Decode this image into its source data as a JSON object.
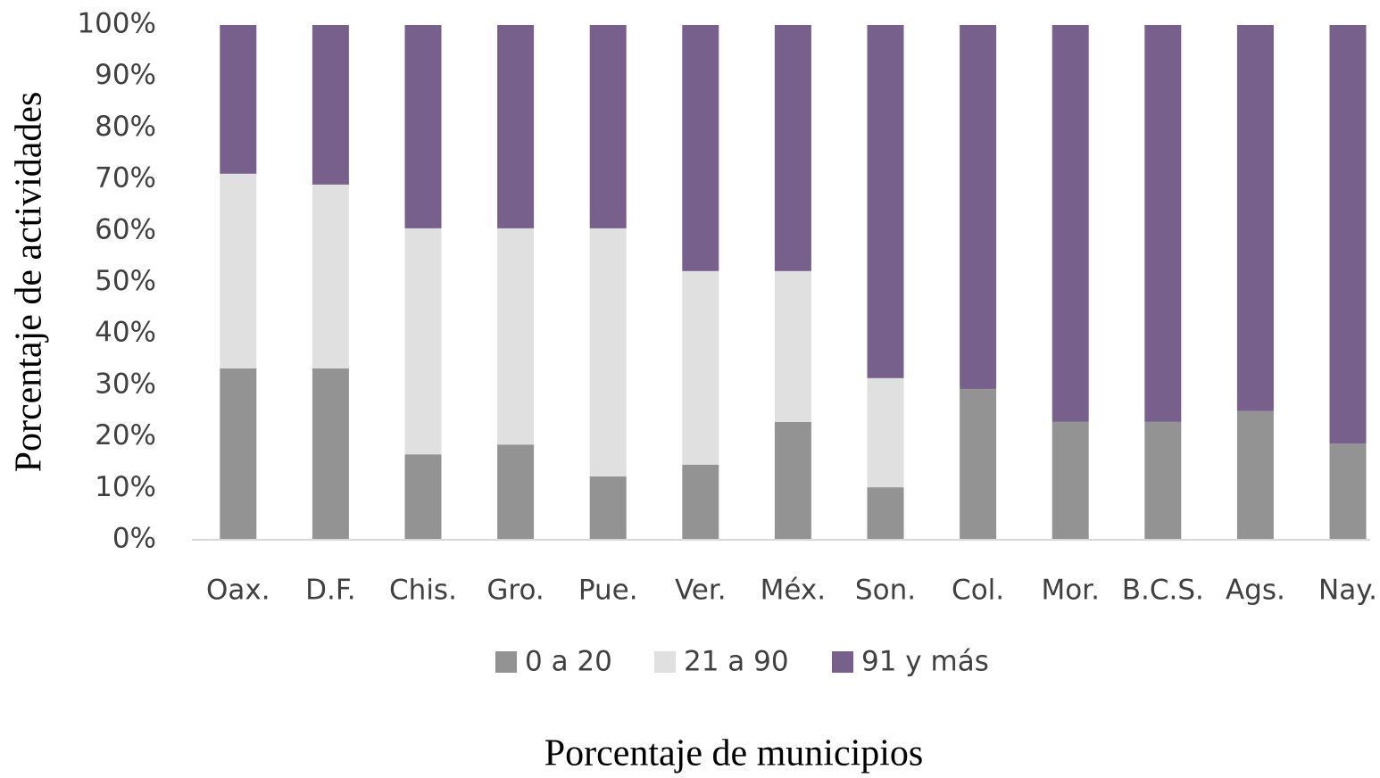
{
  "chart_data": {
    "type": "stacked_bar",
    "x_label": "Porcentaje de municipios",
    "y_label": "Porcentaje de actividades",
    "categories": [
      "Oax.",
      "D.F.",
      "Chis.",
      "Gro.",
      "Pue.",
      "Ver.",
      "Méx.",
      "Son.",
      "Col.",
      "Mor.",
      "B.C.S.",
      "Ags.",
      "Nay."
    ],
    "series": [
      {
        "name": "0 a 20",
        "color": "#939393",
        "values": [
          33.3,
          33.3,
          16.6,
          18.5,
          12.3,
          14.6,
          22.9,
          10.2,
          29.3,
          22.9,
          22.9,
          25.0,
          18.7
        ]
      },
      {
        "name": "21 a 90",
        "color": "#e0e0e0",
        "values": [
          37.8,
          35.7,
          43.9,
          42.0,
          48.2,
          37.6,
          29.3,
          21.2,
          0,
          0,
          0,
          0,
          0
        ]
      },
      {
        "name": "91 y más",
        "color": "#77618c",
        "values": [
          28.9,
          31.0,
          39.5,
          39.5,
          39.5,
          47.8,
          47.8,
          68.6,
          70.7,
          77.1,
          77.1,
          75.0,
          81.3
        ]
      }
    ],
    "ylim": [
      0,
      100
    ],
    "yticks": [
      {
        "value": 0,
        "label": "0%"
      },
      {
        "value": 10,
        "label": "10%"
      },
      {
        "value": 20,
        "label": "20%"
      },
      {
        "value": 30,
        "label": "30%"
      },
      {
        "value": 40,
        "label": "40%"
      },
      {
        "value": 50,
        "label": "50%"
      },
      {
        "value": 60,
        "label": "60%"
      },
      {
        "value": 70,
        "label": "70%"
      },
      {
        "value": 80,
        "label": "80%"
      },
      {
        "value": 90,
        "label": "90%"
      },
      {
        "value": 100,
        "label": "100%"
      }
    ],
    "legend": "bottom"
  }
}
